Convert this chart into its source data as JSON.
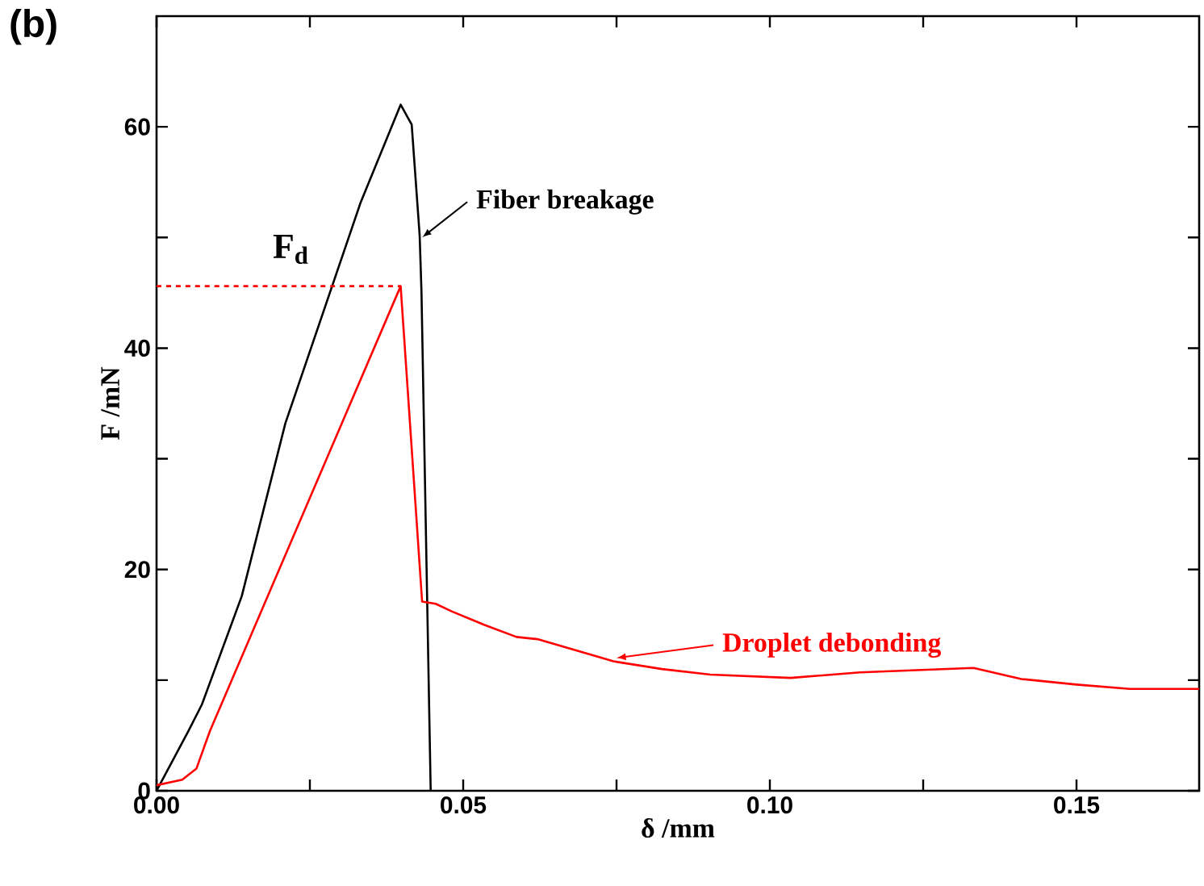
{
  "chart_data": {
    "type": "line",
    "title": "(b)",
    "xlabel": "δ /mm",
    "ylabel": "F /mN",
    "xlim": [
      0,
      0.17
    ],
    "ylim": [
      0,
      70
    ],
    "xticks": [
      {
        "value": 0,
        "label": "0.00"
      },
      {
        "value": 0.025,
        "label": null
      },
      {
        "value": 0.05,
        "label": "0.05"
      },
      {
        "value": 0.075,
        "label": null
      },
      {
        "value": 0.1,
        "label": "0.10"
      },
      {
        "value": 0.125,
        "label": null
      },
      {
        "value": 0.15,
        "label": "0.15"
      }
    ],
    "yticks": [
      0,
      {
        "value": 10,
        "label": null
      },
      20,
      {
        "value": 30,
        "label": null
      },
      40,
      {
        "value": 50,
        "label": null
      },
      60
    ],
    "grid": false,
    "marker": "none",
    "line_style": "solid",
    "series": [
      {
        "color": "#000000",
        "x": [
          0,
          0.0052,
          0.0074,
          0.0139,
          0.021,
          0.0333,
          0.0398,
          0.0416,
          0.0429,
          0.0432,
          0.0447
        ],
        "values": [
          0,
          5.4,
          7.8,
          17.6,
          33.2,
          53.2,
          62,
          60.2,
          50.2,
          45,
          0
        ]
      },
      {
        "color": "#ff0000",
        "x": [
          0,
          0.0042,
          0.0065,
          0.0087,
          0.0398,
          0.0433,
          0.0455,
          0.0482,
          0.0534,
          0.0587,
          0.0621,
          0.0745,
          0.0824,
          0.0903,
          0.1034,
          0.1147,
          0.1332,
          0.141,
          0.15,
          0.1587,
          0.17
        ],
        "values": [
          0.5,
          1.0,
          2,
          5.4,
          45.6,
          17.1,
          16.9,
          16.2,
          15,
          13.9,
          13.7,
          11.7,
          11.0,
          10.5,
          10.2,
          10.7,
          11.1,
          10.1,
          9.6,
          9.2,
          9.2
        ]
      }
    ],
    "ref_lines": [
      {
        "axis": "y",
        "value": 45.6,
        "label": "F$_{d}$",
        "color": "#ff0000",
        "line_style": "dashed"
      }
    ],
    "annotations": [
      {
        "text": "Fiber breakage",
        "x": 0.0433,
        "y": 50
      },
      {
        "text": "Droplet debonding",
        "x": 0.075,
        "y": 12
      }
    ]
  }
}
